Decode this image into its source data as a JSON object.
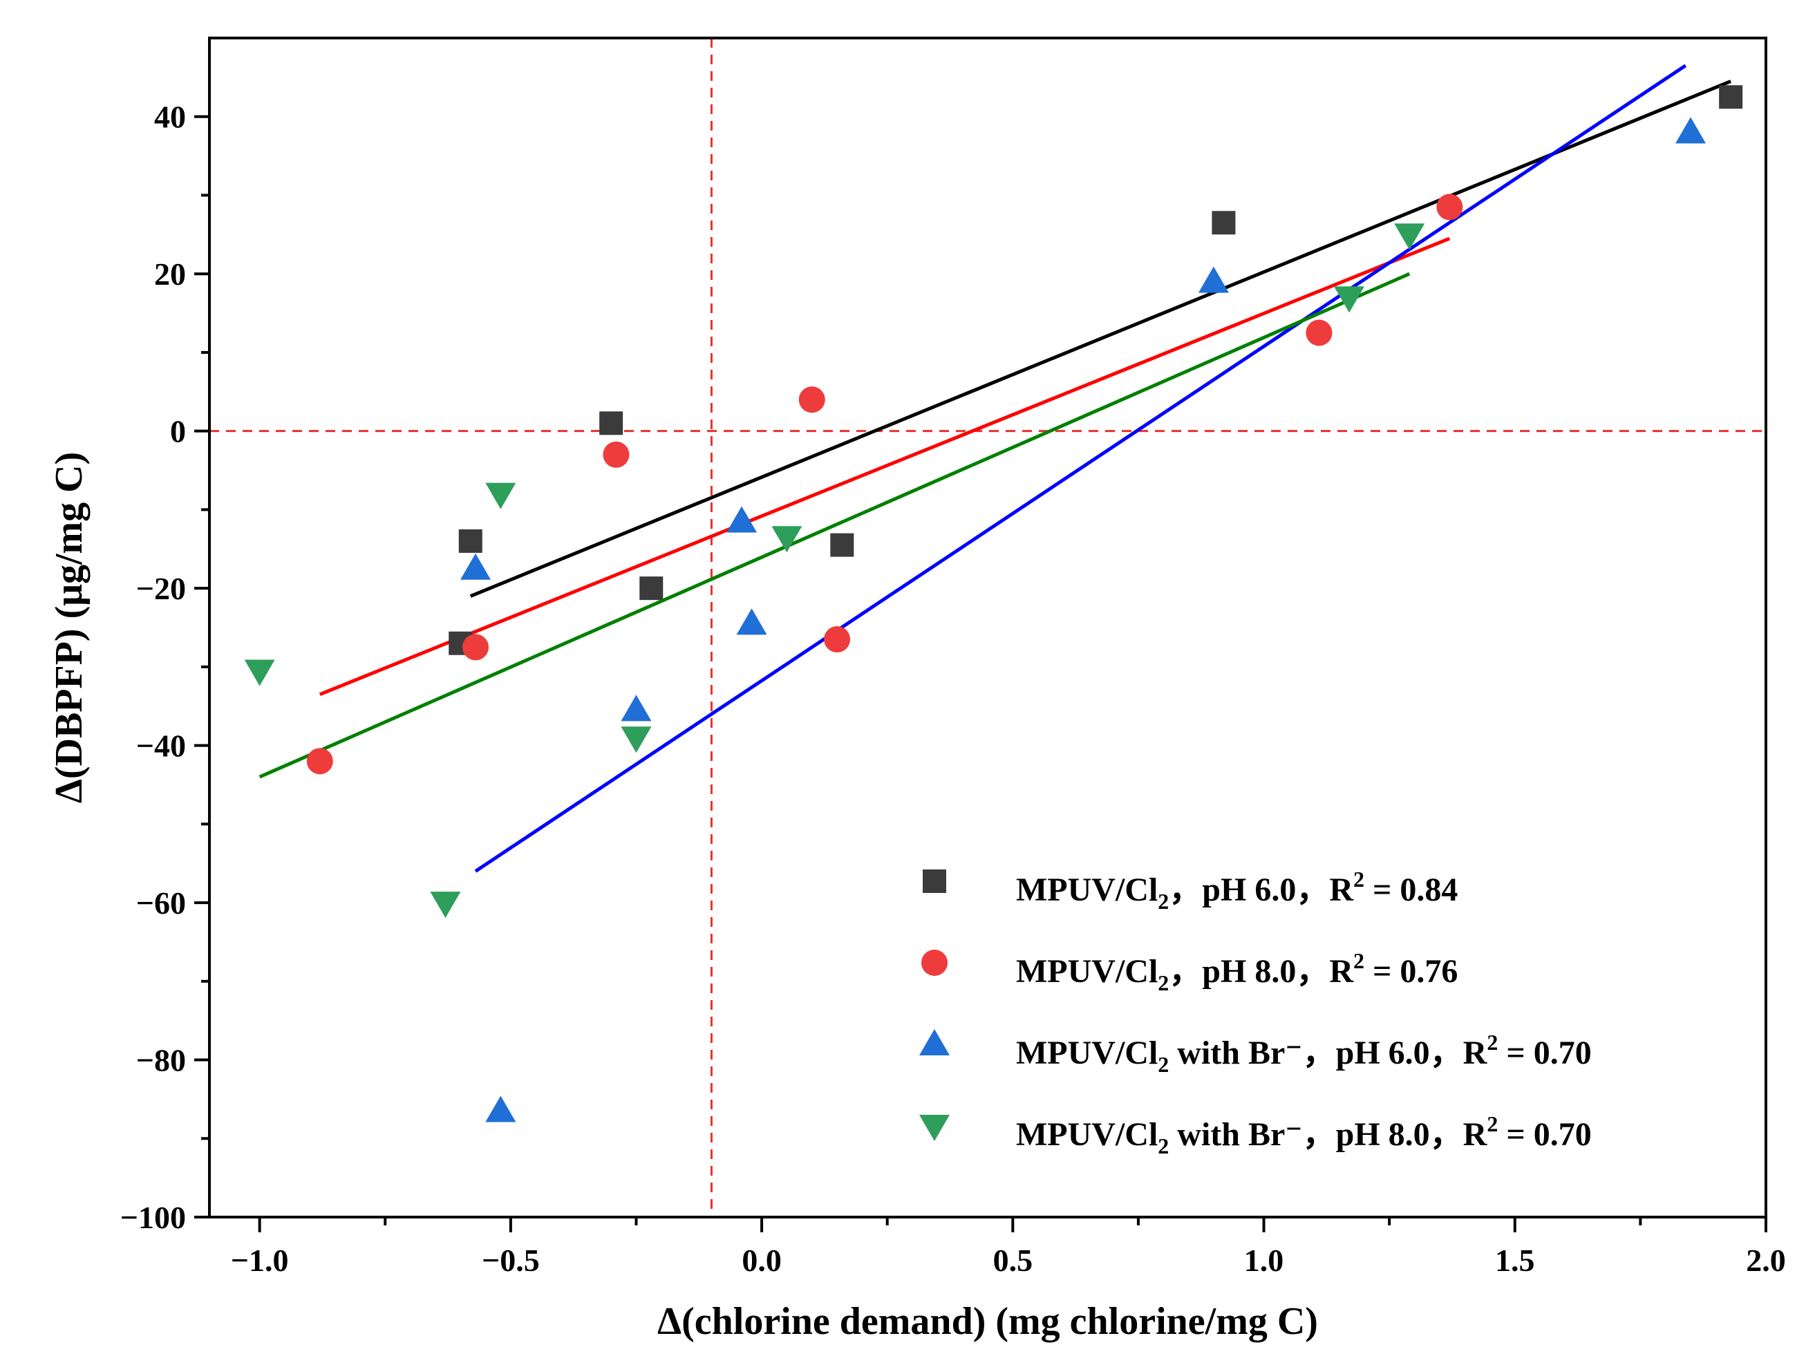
{
  "chart_data": {
    "type": "scatter",
    "title": "",
    "xlabel": "Δ(chlorine demand) (mg chlorine/mg C)",
    "ylabel": "Δ(DBPFP) (μg/mg C)",
    "xlim": [
      -1.1,
      2.0
    ],
    "ylim": [
      -100,
      50
    ],
    "x_ticks": [
      -1.0,
      -0.5,
      0.0,
      0.5,
      1.0,
      1.5,
      2.0
    ],
    "x_tick_labels": [
      "-1.0",
      "-0.5",
      "0.0",
      "0.5",
      "1.0",
      "1.5",
      "2.0"
    ],
    "y_ticks": [
      -100,
      -80,
      -60,
      -40,
      -20,
      0,
      20,
      40
    ],
    "y_tick_labels": [
      "-100",
      "-80",
      "-60",
      "-40",
      "-20",
      "0",
      "20",
      "40"
    ],
    "reference_lines": {
      "x": -0.1,
      "y": 0,
      "color": "#e8312e",
      "style": "dashed"
    },
    "legend_position": "bottom-right",
    "series": [
      {
        "name": "MPUV/Cl2, pH 6.0, R2 = 0.84",
        "label_main": "MPUV/Cl",
        "label_sub": "2",
        "label_mid": "，pH 6.0，R",
        "label_sup": "2",
        "label_tail": " = 0.84",
        "marker": "square",
        "color": "#3b3b3b",
        "line_color": "#000000",
        "points": [
          [
            -0.6,
            -27
          ],
          [
            -0.58,
            -14
          ],
          [
            -0.3,
            1
          ],
          [
            -0.22,
            -20
          ],
          [
            0.16,
            -14.5
          ],
          [
            0.92,
            26.5
          ],
          [
            1.93,
            42.5
          ]
        ],
        "fit": [
          [
            -0.58,
            -21
          ],
          [
            1.93,
            44.5
          ]
        ]
      },
      {
        "name": "MPUV/Cl2, pH 8.0, R2 = 0.76",
        "label_main": "MPUV/Cl",
        "label_sub": "2",
        "label_mid": "，pH 8.0，R",
        "label_sup": "2",
        "label_tail": " = 0.76",
        "marker": "circle",
        "color": "#ee3b3b",
        "line_color": "#ff0000",
        "points": [
          [
            -0.88,
            -42
          ],
          [
            -0.57,
            -27.5
          ],
          [
            -0.29,
            -3
          ],
          [
            0.1,
            4
          ],
          [
            0.15,
            -26.5
          ],
          [
            1.11,
            12.5
          ],
          [
            1.37,
            28.5
          ]
        ],
        "fit": [
          [
            -0.88,
            -33.5
          ],
          [
            1.37,
            24.5
          ]
        ]
      },
      {
        "name": "MPUV/Cl2 with Br−, pH 6.0, R2 = 0.70",
        "label_main": "MPUV/Cl",
        "label_sub": "2",
        "label_mid": " with Br⁻，pH 6.0，R",
        "label_sup": "2",
        "label_tail": " = 0.70",
        "marker": "triangle-up",
        "color": "#1f6fd6",
        "line_color": "#0000ff",
        "points": [
          [
            -0.57,
            -17.5
          ],
          [
            -0.52,
            -86.5
          ],
          [
            -0.25,
            -35.5
          ],
          [
            -0.04,
            -11.5
          ],
          [
            -0.02,
            -24.5
          ],
          [
            0.9,
            19
          ],
          [
            1.85,
            38
          ]
        ],
        "fit": [
          [
            -0.57,
            -56
          ],
          [
            1.84,
            46.5
          ]
        ]
      },
      {
        "name": "MPUV/Cl2 with Br−, pH 8.0, R2 = 0.70",
        "label_main": "MPUV/Cl",
        "label_sub": "2",
        "label_mid": " with Br⁻，pH 8.0，R",
        "label_sup": "2",
        "label_tail": " = 0.70",
        "marker": "triangle-down",
        "color": "#2e9e5b",
        "line_color": "#008000",
        "points": [
          [
            -1.0,
            -30.5
          ],
          [
            -0.63,
            -60
          ],
          [
            -0.52,
            -8
          ],
          [
            -0.25,
            -39
          ],
          [
            0.05,
            -13.5
          ],
          [
            1.17,
            17
          ],
          [
            1.29,
            25
          ]
        ],
        "fit": [
          [
            -1.0,
            -44
          ],
          [
            1.29,
            20
          ]
        ]
      }
    ]
  }
}
